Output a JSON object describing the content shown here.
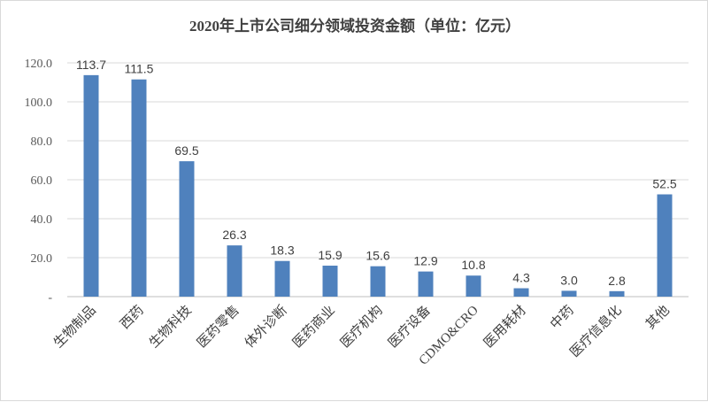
{
  "chart_data": {
    "type": "bar",
    "title": "2020年上市公司细分领域投资金额（单位：亿元）",
    "xlabel": "",
    "ylabel": "",
    "categories": [
      "生物制品",
      "西药",
      "生物科技",
      "医药零售",
      "体外诊断",
      "医药商业",
      "医疗机构",
      "医疗设备",
      "CDMO&CRO",
      "医用耗材",
      "中药",
      "医疗信息化",
      "其他"
    ],
    "values": [
      113.7,
      111.5,
      69.5,
      26.3,
      18.3,
      15.9,
      15.6,
      12.9,
      10.8,
      4.3,
      3.0,
      2.8,
      52.5
    ],
    "data_labels": [
      "113.7",
      "111.5",
      "69.5",
      "26.3",
      "18.3",
      "15.9",
      "15.6",
      "12.9",
      "10.8",
      "4.3",
      "3.0",
      "2.8",
      "52.5"
    ],
    "y_ticks": [
      "-",
      "20.0",
      "40.0",
      "60.0",
      "80.0",
      "100.0",
      "120.0"
    ],
    "ylim": [
      0,
      120
    ],
    "grid": true,
    "legend": "none",
    "bar_color": "#4f81bd"
  }
}
